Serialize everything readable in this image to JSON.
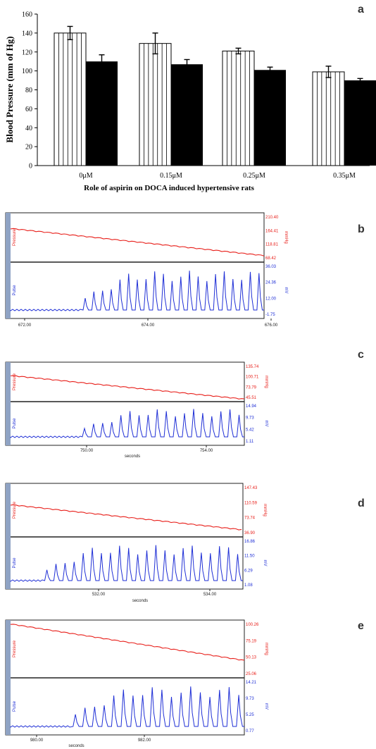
{
  "panel_a": {
    "label": "a",
    "chart_data": {
      "type": "bar",
      "categories": [
        "0μM",
        "0.15μM",
        "0.25μM",
        "0.35μM"
      ],
      "series": [
        {
          "values": [
            140,
            129,
            121,
            99
          ],
          "errors": [
            7,
            11,
            3,
            6
          ]
        },
        {
          "values": [
            110,
            107,
            101,
            90
          ],
          "errors": [
            7,
            5,
            3,
            2
          ]
        }
      ],
      "yticks": [
        0,
        20,
        40,
        60,
        80,
        100,
        120,
        140,
        160
      ],
      "ylim": [
        0,
        160
      ],
      "ylabel": "Blood Pressure (mm of Hg)",
      "xlabel": "Role of aspirin on DOCA induced hypertensive rats"
    }
  },
  "traces": [
    {
      "label": "b",
      "top_channel": {
        "name": "Pressure",
        "unit": "mmHg",
        "ticks": [
          "210.40",
          "164.41",
          "118.81",
          "68.42"
        ]
      },
      "bottom_channel": {
        "name": "Pulse",
        "unit": "mV",
        "ticks": [
          "36.03",
          "24.36",
          "12.00",
          "-1.75"
        ]
      },
      "time_ticks": [
        "672.00",
        "674.00",
        "676.00"
      ],
      "time_label": ""
    },
    {
      "label": "c",
      "top_channel": {
        "name": "Pressure",
        "unit": "mmHg",
        "ticks": [
          "135.74",
          "100.71",
          "73.79",
          "45.51"
        ]
      },
      "bottom_channel": {
        "name": "Pulse",
        "unit": "mV",
        "ticks": [
          "14.94",
          "9.73",
          "5.42",
          "1.11"
        ]
      },
      "time_ticks": [
        "750.00",
        "754.00"
      ],
      "time_label": "seconds"
    },
    {
      "label": "d",
      "top_channel": {
        "name": "Pressure",
        "unit": "mmHg",
        "ticks": [
          "147.43",
          "110.59",
          "73.74",
          "36.90"
        ]
      },
      "bottom_channel": {
        "name": "Pulse",
        "unit": "mV",
        "ticks": [
          "16.86",
          "11.50",
          "6.29",
          "1.08"
        ]
      },
      "time_ticks": [
        "532.00",
        "534.00"
      ],
      "time_label": "seconds"
    },
    {
      "label": "e",
      "top_channel": {
        "name": "Pressure",
        "unit": "mmHg",
        "ticks": [
          "100.26",
          "75.19",
          "50.13",
          "25.06"
        ]
      },
      "bottom_channel": {
        "name": "Pulse",
        "unit": "mV",
        "ticks": [
          "14.21",
          "9.73",
          "5.25",
          "0.77"
        ]
      },
      "time_ticks": [
        "980.00",
        "982.00"
      ],
      "time_label": "seconds"
    }
  ],
  "colors": {
    "pressure_trace": "#e8201b",
    "pulse_trace": "#1f2fd6",
    "side_strip": "#8fa3c4",
    "bar_open": "#ffffff",
    "bar_filled": "#000000"
  }
}
